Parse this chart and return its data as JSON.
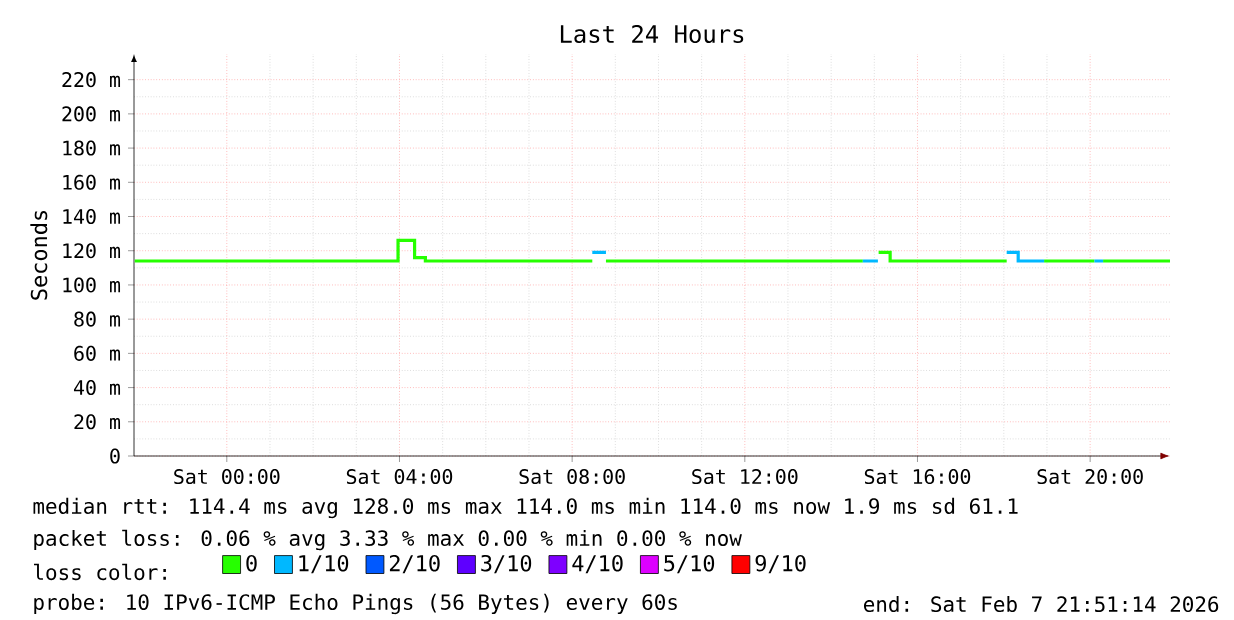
{
  "chart_data": {
    "type": "step",
    "title": "Last 24 Hours",
    "ylabel": "Seconds",
    "legend_title": "loss color:",
    "legend": "bottom",
    "grid": true,
    "xlim": [
      "2026-02-06T21:51",
      "2026-02-07T21:51"
    ],
    "xticks": [
      {
        "value": "2026-02-07T00:00",
        "label": "Sat 00:00"
      },
      {
        "value": "2026-02-07T04:00",
        "label": "Sat 04:00"
      },
      {
        "value": "2026-02-07T08:00",
        "label": "Sat 08:00"
      },
      {
        "value": "2026-02-07T12:00",
        "label": "Sat 12:00"
      },
      {
        "value": "2026-02-07T16:00",
        "label": "Sat 16:00"
      },
      {
        "value": "2026-02-07T20:00",
        "label": "Sat 20:00"
      }
    ],
    "ylim": [
      0,
      235
    ],
    "yticks": [
      0,
      {
        "value": 20,
        "label": "20 m"
      },
      {
        "value": 40,
        "label": "40 m"
      },
      {
        "value": 60,
        "label": "60 m"
      },
      {
        "value": 80,
        "label": "80 m"
      },
      {
        "value": 100,
        "label": "100 m"
      },
      {
        "value": 120,
        "label": "120 m"
      },
      {
        "value": 140,
        "label": "140 m"
      },
      {
        "value": 160,
        "label": "160 m"
      },
      {
        "value": 180,
        "label": "180 m"
      },
      {
        "value": 200,
        "label": "200 m"
      },
      {
        "value": 220,
        "label": "220 m"
      }
    ],
    "series": [
      {
        "name": "0",
        "color": "#26ff00",
        "x": [
          "2026-02-06T21:52",
          "2026-02-07T03:58",
          "2026-02-07T04:21",
          "2026-02-07T04:36",
          "2026-02-07T08:28",
          "2026-02-07T08:29",
          "2026-02-07T08:47",
          "2026-02-07T14:44",
          "2026-02-07T14:45",
          "2026-02-07T15:06",
          "2026-02-07T15:22",
          "2026-02-07T18:04",
          "2026-02-07T18:05",
          "2026-02-07T18:56",
          "2026-02-07T20:06",
          "2026-02-07T20:07",
          "2026-02-07T20:18",
          "2026-02-07T21:51"
        ],
        "values": [
          114,
          126,
          116,
          114,
          114,
          null,
          114,
          114,
          null,
          119,
          114,
          114,
          null,
          114,
          114,
          null,
          114,
          114
        ]
      },
      {
        "name": "1/10",
        "color": "#00b8ff",
        "x": [
          "2026-02-07T08:28",
          "2026-02-07T08:47",
          "2026-02-07T08:48",
          "2026-02-07T14:44",
          "2026-02-07T15:05",
          "2026-02-07T15:06",
          "2026-02-07T18:04",
          "2026-02-07T18:20",
          "2026-02-07T18:56",
          "2026-02-07T18:57",
          "2026-02-07T20:06",
          "2026-02-07T20:18"
        ],
        "values": [
          119,
          119,
          null,
          114,
          114,
          null,
          119,
          114,
          114,
          null,
          114,
          114
        ]
      },
      {
        "name": "2/10",
        "color": "#0059ff"
      },
      {
        "name": "3/10",
        "color": "#5e00ff"
      },
      {
        "name": "4/10",
        "color": "#7e00ff"
      },
      {
        "name": "5/10",
        "color": "#dd00ff"
      },
      {
        "name": "9/10",
        "color": "#ff0000"
      }
    ],
    "annotations": [
      "median rtt: 114.4 ms avg 128.0 ms max 114.0 ms min 114.0 ms now 1.9 ms sd 61.1",
      "packet loss: 0.06 % avg 3.33 % max 0.00 % min 0.00 % now",
      "probe: 10 IPv6-ICMP Echo Pings (56 Bytes) every 60s",
      "end: Sat Feb 7 21:51:14 2026"
    ]
  }
}
